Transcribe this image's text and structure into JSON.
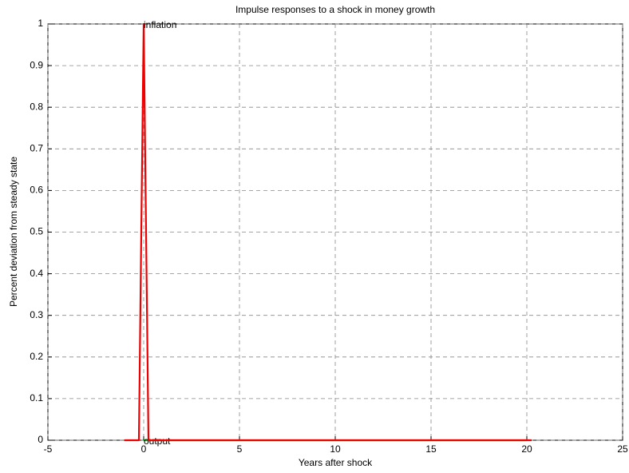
{
  "chart_data": {
    "type": "line",
    "title": "Impulse responses to a shock in money growth",
    "x_label": "Years after shock",
    "y_label": "Percent deviation from steady state",
    "xlim": [
      -5,
      25
    ],
    "xticks": [
      -5,
      0,
      5,
      10,
      15,
      20,
      25
    ],
    "ylim": [
      0,
      1
    ],
    "yticks": [
      0,
      0.1,
      0.2,
      0.3,
      0.4,
      0.5,
      0.6,
      0.7,
      0.8,
      0.9,
      1
    ],
    "grid": true,
    "series": [
      {
        "name": "output",
        "color": "#00aa00",
        "x": [
          0,
          0.25,
          20
        ],
        "values": [
          0,
          0,
          0
        ]
      },
      {
        "name": "inflation",
        "color": "#ee0000",
        "x": [
          -1,
          -0.25,
          0,
          0.25,
          20.25
        ],
        "values": [
          0,
          0,
          1,
          0,
          0
        ]
      }
    ]
  }
}
